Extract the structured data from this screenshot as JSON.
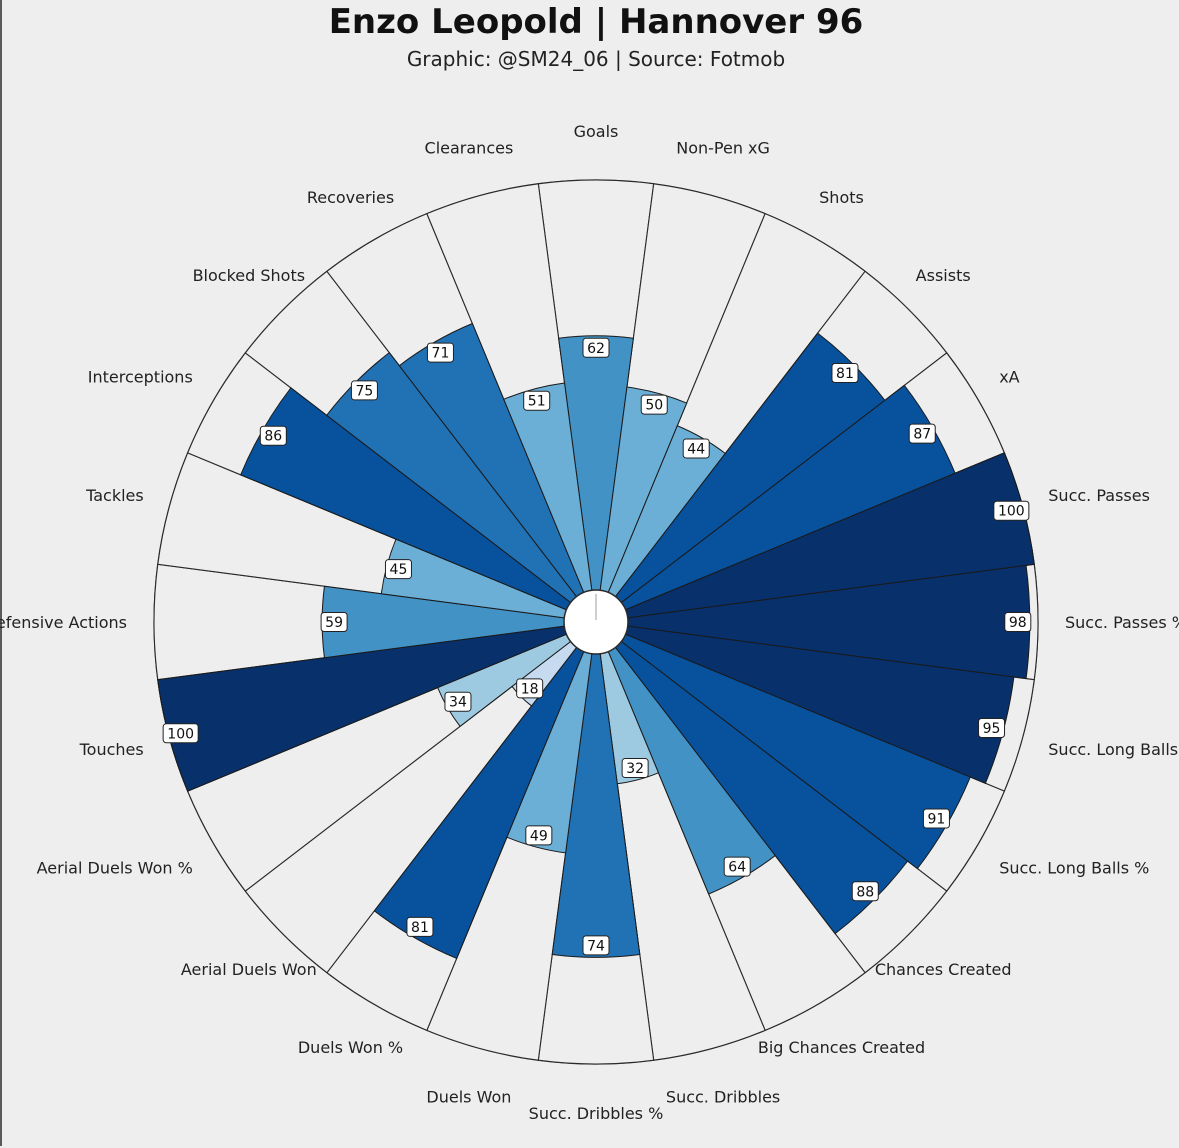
{
  "title": "Enzo Leopold | Hannover 96",
  "subtitle": "Graphic: @SM24_06 | Source: Fotmob",
  "colors": {
    "background": "#efeeef",
    "empty_slice": "#efeeef",
    "scale": [
      "#c6dbef",
      "#9ecae1",
      "#6baed6",
      "#4292c6",
      "#2171b5",
      "#08519c",
      "#08306b"
    ]
  },
  "chart_data": {
    "type": "radar-bar",
    "title": "Enzo Leopold | Hannover 96",
    "subtitle": "Graphic: @SM24_06 | Source: Fotmob",
    "rlim": [
      0,
      100
    ],
    "categories": [
      "Goals",
      "Non-Pen xG",
      "Shots",
      "Assists",
      "xA",
      "Succ. Passes",
      "Succ. Passes %",
      "Succ. Long Balls",
      "Succ. Long Balls %",
      "Chances Created",
      "Big Chances Created",
      "Succ. Dribbles",
      "Succ. Dribbles %",
      "Duels Won",
      "Duels Won %",
      "Aerial Duels Won",
      "Aerial Duels Won %",
      "Touches",
      "Defensive Actions",
      "Tackles",
      "Interceptions",
      "Blocked Shots",
      "Recoveries",
      "Clearances"
    ],
    "values": [
      62,
      50,
      44,
      81,
      87,
      100,
      98,
      95,
      91,
      88,
      64,
      32,
      74,
      49,
      81,
      18,
      34,
      100,
      59,
      45,
      86,
      75,
      71,
      51
    ]
  }
}
